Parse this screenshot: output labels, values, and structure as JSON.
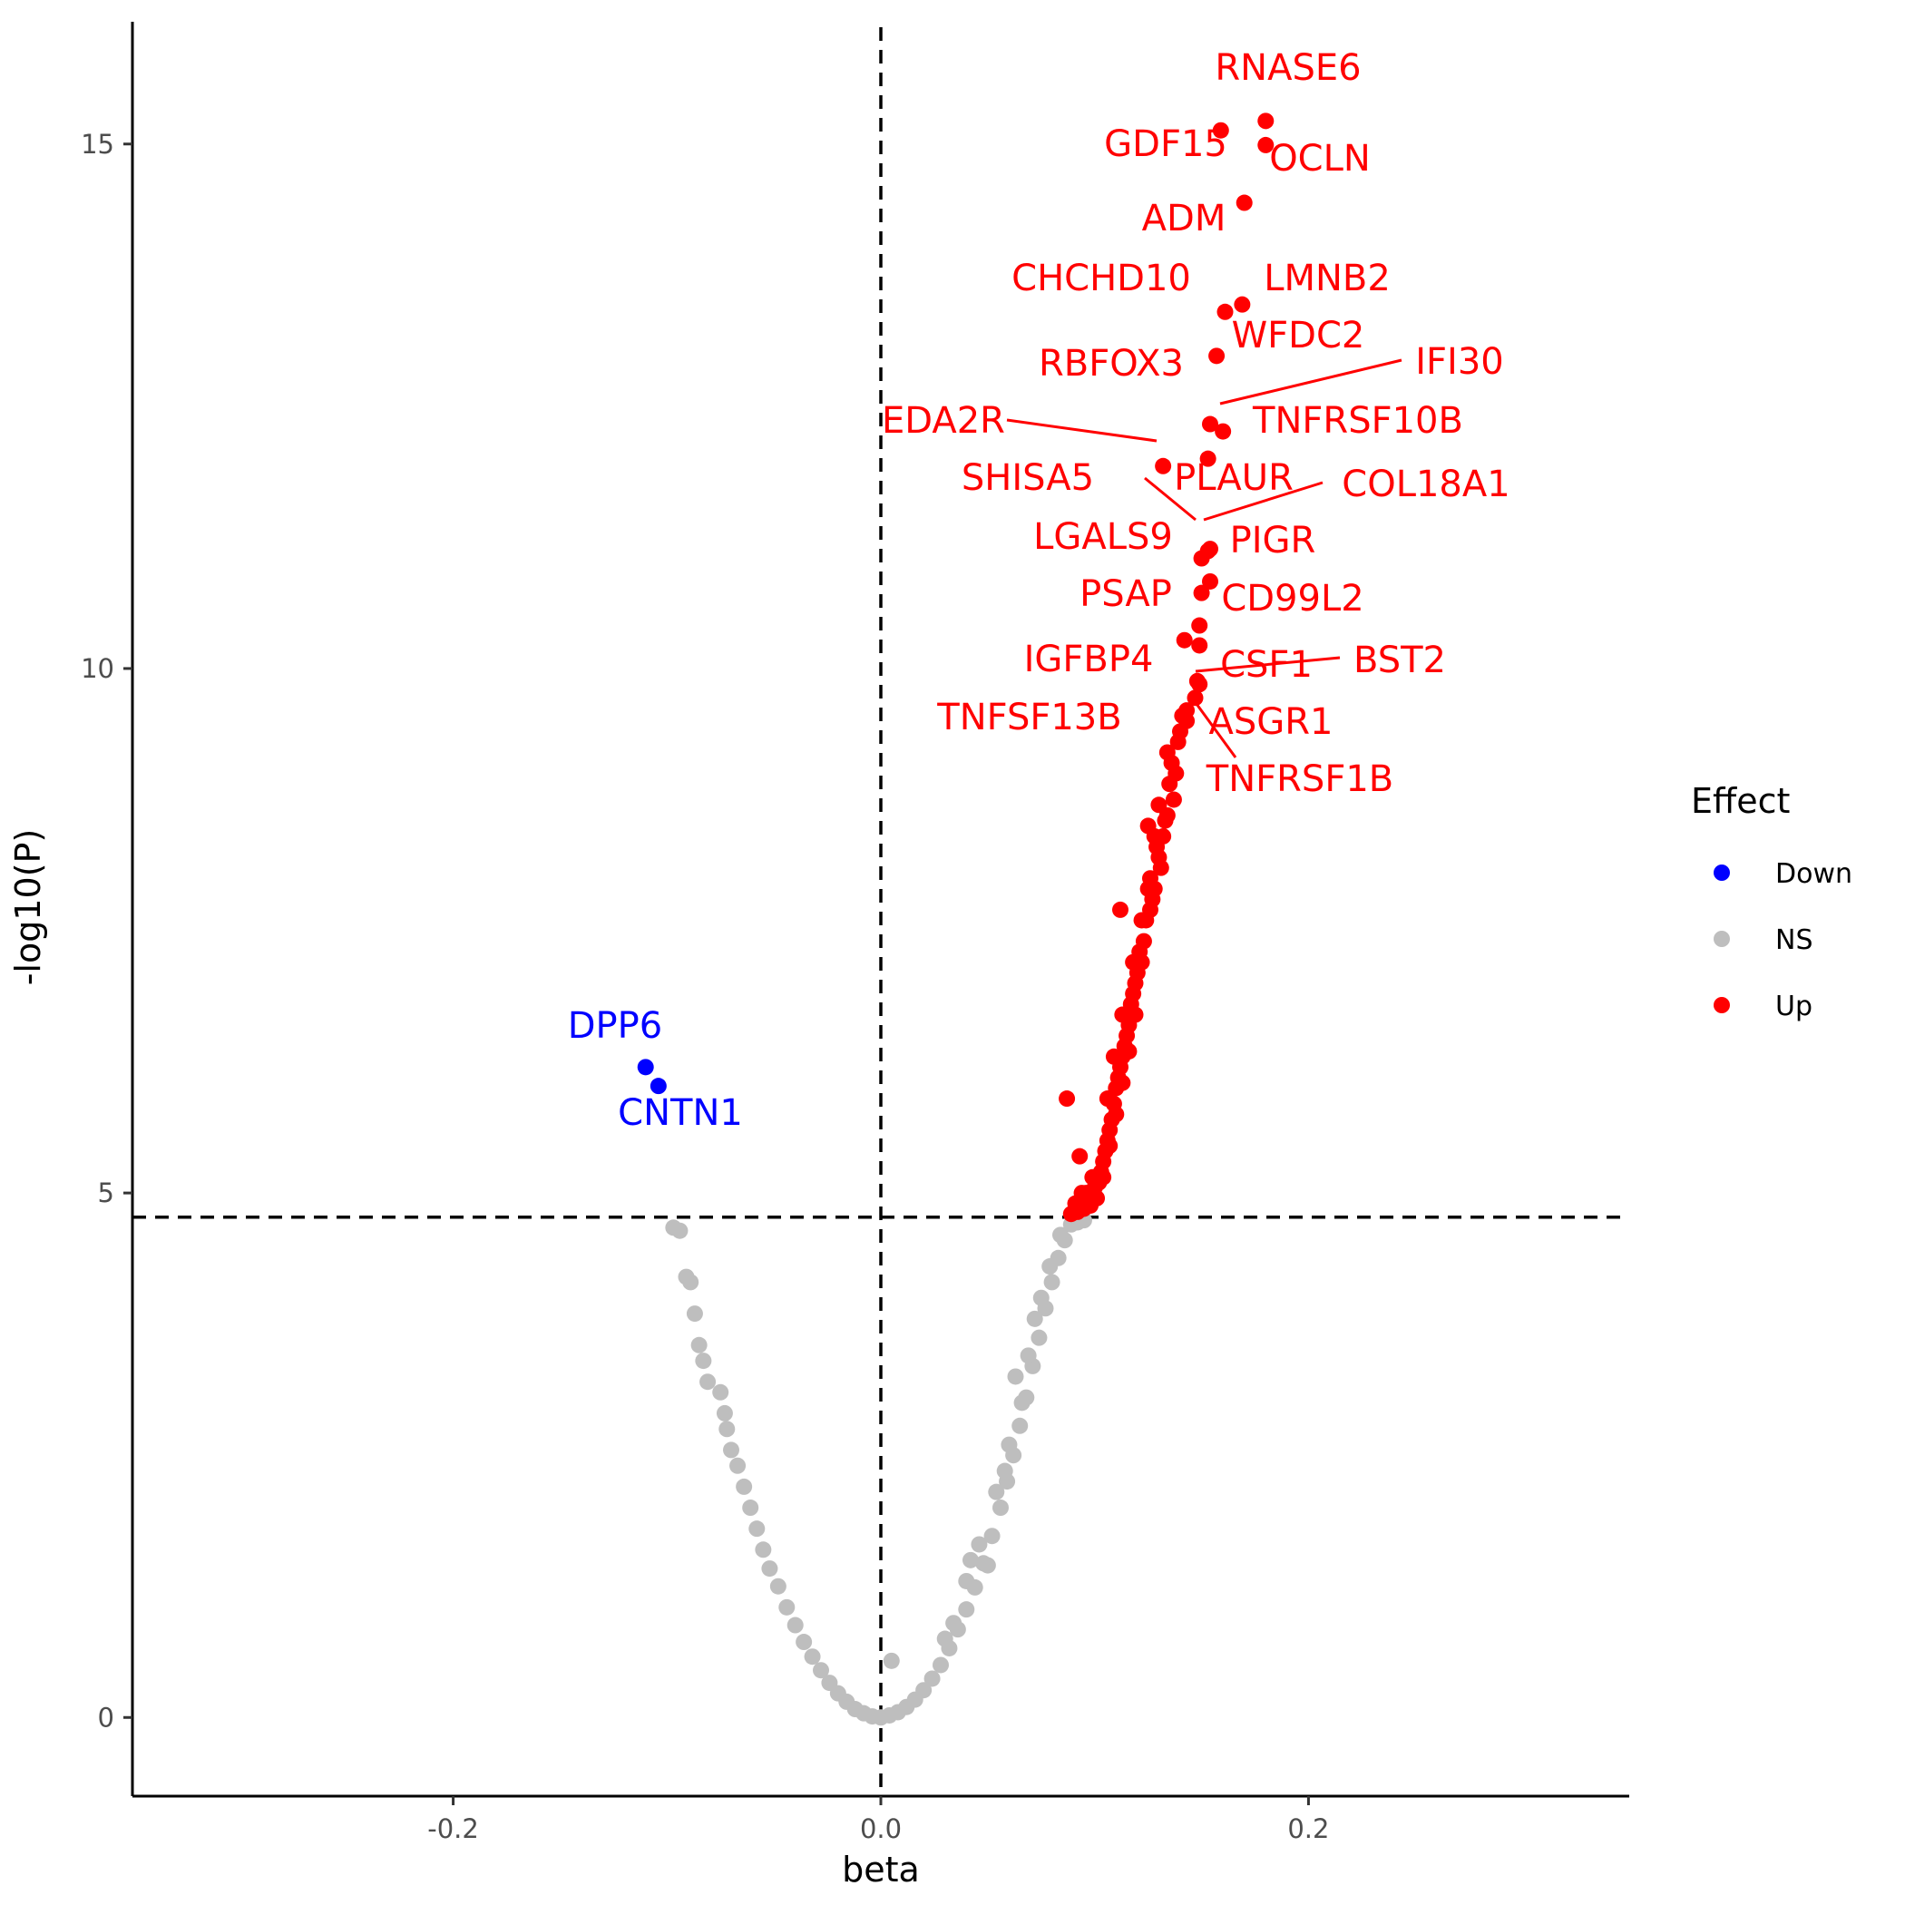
{
  "chart_data": {
    "type": "scatter",
    "title": "",
    "xlabel": "beta",
    "ylabel": "-log10(P)",
    "xlim": [
      -0.35,
      0.35
    ],
    "ylim": [
      -0.75,
      16.2
    ],
    "x_ticks": [
      {
        "value": -0.2,
        "label": "-0.2"
      },
      {
        "value": 0.0,
        "label": "0.0"
      },
      {
        "value": 0.2,
        "label": "0.2"
      }
    ],
    "y_ticks": [
      {
        "value": 0,
        "label": "0"
      },
      {
        "value": 5,
        "label": "5"
      },
      {
        "value": 10,
        "label": "10"
      },
      {
        "value": 15,
        "label": "15"
      }
    ],
    "reference_lines": {
      "vertical_x": 0.0,
      "horizontal_y": 4.77
    },
    "grid": false,
    "legend": {
      "title": "Effect",
      "position": "right",
      "entries": [
        {
          "label": "Down",
          "color": "#0000ff"
        },
        {
          "label": "NS",
          "color": "#bebebe"
        },
        {
          "label": "Up",
          "color": "#ff0000"
        }
      ]
    },
    "colors": {
      "Down": "#0000ff",
      "NS": "#bebebe",
      "Up": "#ff0000"
    },
    "labeled_points": [
      {
        "label": "RNASE6",
        "group": "Up",
        "x": 0.18,
        "y": 15.22
      },
      {
        "label": "GDF15",
        "group": "Up",
        "x": 0.159,
        "y": 15.13
      },
      {
        "label": "OCLN",
        "group": "Up",
        "x": 0.18,
        "y": 14.99
      },
      {
        "label": "ADM",
        "group": "Up",
        "x": 0.17,
        "y": 14.44
      },
      {
        "label": "LMNB2",
        "group": "Up",
        "x": 0.169,
        "y": 13.47
      },
      {
        "label": "CHCHD10",
        "group": "Up",
        "x": 0.161,
        "y": 13.4
      },
      {
        "label": "WFDC2",
        "group": "Up",
        "x": 0.157,
        "y": 12.98
      },
      {
        "label": "RBFOX3",
        "group": "Up",
        "x": 0.154,
        "y": 12.33
      },
      {
        "label": "IFI30",
        "group": "Up",
        "x": 0.16,
        "y": 12.26
      },
      {
        "label": "TNFRSF10B",
        "group": "Up",
        "x": 0.153,
        "y": 12.0
      },
      {
        "label": "EDA2R",
        "group": "Up",
        "x": 0.132,
        "y": 11.93
      },
      {
        "label": "PLAUR",
        "group": "Up",
        "x": 0.154,
        "y": 11.14
      },
      {
        "label": "SHISA5",
        "group": "Up",
        "x": 0.15,
        "y": 11.05
      },
      {
        "label": "COL18A1",
        "group": "Up",
        "x": 0.153,
        "y": 11.12
      },
      {
        "label": "PIGR",
        "group": "Up",
        "x": 0.154,
        "y": 10.83
      },
      {
        "label": "LGALS9",
        "group": "Up",
        "x": 0.15,
        "y": 10.72
      },
      {
        "label": "CD99L2",
        "group": "Up",
        "x": 0.149,
        "y": 10.41
      },
      {
        "label": "PSAP",
        "group": "Up",
        "x": 0.142,
        "y": 10.27
      },
      {
        "label": "IGFBP4",
        "group": "Up",
        "x": 0.149,
        "y": 10.22
      },
      {
        "label": "CSF1",
        "group": "Up",
        "x": 0.148,
        "y": 9.88
      },
      {
        "label": "BST2",
        "group": "Up",
        "x": 0.149,
        "y": 9.85
      },
      {
        "label": "TNFSF13B",
        "group": "Up",
        "x": 0.143,
        "y": 9.6
      },
      {
        "label": "ASGR1",
        "group": "Up",
        "x": 0.147,
        "y": 9.72
      },
      {
        "label": "TNFRSF1B",
        "group": "Up",
        "x": 0.143,
        "y": 9.5
      },
      {
        "label": "DPP6",
        "group": "Down",
        "x": -0.11,
        "y": 6.2
      },
      {
        "label": "CNTN1",
        "group": "Down",
        "x": -0.104,
        "y": 6.02
      }
    ],
    "other_points": {
      "Up": [
        [
          0.087,
          5.9
        ],
        [
          0.112,
          7.7
        ],
        [
          0.093,
          5.35
        ],
        [
          0.137,
          8.75
        ],
        [
          0.125,
          8.5
        ],
        [
          0.134,
          8.6
        ],
        [
          0.13,
          8.2
        ],
        [
          0.126,
          8.0
        ],
        [
          0.128,
          7.9
        ],
        [
          0.124,
          7.6
        ],
        [
          0.121,
          7.3
        ],
        [
          0.119,
          7.0
        ],
        [
          0.117,
          6.8
        ],
        [
          0.116,
          6.6
        ],
        [
          0.114,
          6.4
        ],
        [
          0.112,
          6.2
        ],
        [
          0.11,
          6.0
        ],
        [
          0.108,
          5.7
        ],
        [
          0.106,
          5.5
        ],
        [
          0.104,
          5.3
        ],
        [
          0.102,
          5.1
        ],
        [
          0.101,
          4.95
        ],
        [
          0.098,
          4.88
        ],
        [
          0.095,
          4.85
        ],
        [
          0.092,
          4.82
        ],
        [
          0.089,
          4.8
        ],
        [
          0.136,
          9.1
        ],
        [
          0.139,
          9.3
        ],
        [
          0.141,
          9.55
        ],
        [
          0.138,
          9.0
        ],
        [
          0.135,
          8.9
        ],
        [
          0.132,
          8.4
        ],
        [
          0.129,
          8.3
        ],
        [
          0.127,
          7.8
        ],
        [
          0.123,
          7.4
        ],
        [
          0.12,
          7.1
        ],
        [
          0.118,
          6.9
        ],
        [
          0.115,
          6.5
        ],
        [
          0.113,
          6.3
        ],
        [
          0.111,
          6.1
        ],
        [
          0.109,
          5.85
        ],
        [
          0.107,
          5.6
        ],
        [
          0.105,
          5.4
        ],
        [
          0.103,
          5.2
        ],
        [
          0.1,
          5.05
        ],
        [
          0.097,
          4.95
        ],
        [
          0.094,
          5.0
        ],
        [
          0.131,
          8.1
        ],
        [
          0.133,
          8.55
        ],
        [
          0.122,
          7.2
        ],
        [
          0.126,
          7.7
        ],
        [
          0.128,
          8.4
        ],
        [
          0.134,
          9.2
        ],
        [
          0.14,
          9.4
        ],
        [
          0.119,
          6.7
        ],
        [
          0.116,
          6.35
        ],
        [
          0.113,
          6.05
        ],
        [
          0.11,
          5.75
        ],
        [
          0.107,
          5.45
        ],
        [
          0.104,
          5.15
        ],
        [
          0.099,
          5.15
        ],
        [
          0.096,
          5.0
        ],
        [
          0.091,
          4.9
        ],
        [
          0.106,
          5.9
        ],
        [
          0.109,
          6.3
        ],
        [
          0.113,
          6.7
        ],
        [
          0.118,
          7.2
        ],
        [
          0.122,
          7.6
        ],
        [
          0.125,
          7.9
        ],
        [
          0.13,
          8.7
        ]
      ],
      "NS_left": [
        [
          -0.097,
          4.67
        ],
        [
          -0.094,
          4.64
        ],
        [
          -0.091,
          4.2
        ],
        [
          -0.089,
          4.15
        ],
        [
          -0.087,
          3.85
        ],
        [
          -0.085,
          3.55
        ],
        [
          -0.083,
          3.4
        ],
        [
          -0.081,
          3.2
        ],
        [
          -0.075,
          3.1
        ],
        [
          -0.073,
          2.9
        ],
        [
          -0.072,
          2.75
        ],
        [
          -0.07,
          2.55
        ],
        [
          -0.067,
          2.4
        ],
        [
          -0.064,
          2.2
        ],
        [
          -0.061,
          2.0
        ],
        [
          -0.058,
          1.8
        ],
        [
          -0.055,
          1.6
        ],
        [
          -0.052,
          1.42
        ],
        [
          -0.048,
          1.25
        ],
        [
          -0.044,
          1.05
        ],
        [
          -0.04,
          0.88
        ],
        [
          -0.036,
          0.72
        ],
        [
          -0.032,
          0.58
        ],
        [
          -0.028,
          0.45
        ],
        [
          -0.024,
          0.33
        ],
        [
          -0.02,
          0.23
        ],
        [
          -0.016,
          0.15
        ],
        [
          -0.012,
          0.08
        ],
        [
          -0.008,
          0.04
        ],
        [
          -0.004,
          0.01
        ]
      ],
      "NS_right": [
        [
          0.0,
          0.0
        ],
        [
          0.005,
          0.54
        ],
        [
          0.004,
          0.02
        ],
        [
          0.008,
          0.05
        ],
        [
          0.012,
          0.1
        ],
        [
          0.016,
          0.17
        ],
        [
          0.02,
          0.26
        ],
        [
          0.024,
          0.37
        ],
        [
          0.028,
          0.5
        ],
        [
          0.032,
          0.66
        ],
        [
          0.034,
          0.9
        ],
        [
          0.036,
          0.84
        ],
        [
          0.04,
          1.03
        ],
        [
          0.044,
          1.24
        ],
        [
          0.048,
          1.47
        ],
        [
          0.05,
          1.45
        ],
        [
          0.052,
          1.73
        ],
        [
          0.056,
          2.0
        ],
        [
          0.059,
          2.25
        ],
        [
          0.062,
          2.5
        ],
        [
          0.065,
          2.78
        ],
        [
          0.063,
          3.25
        ],
        [
          0.068,
          3.05
        ],
        [
          0.071,
          3.35
        ],
        [
          0.074,
          3.62
        ],
        [
          0.077,
          3.9
        ],
        [
          0.08,
          4.15
        ],
        [
          0.083,
          4.38
        ],
        [
          0.086,
          4.55
        ],
        [
          0.089,
          4.7
        ],
        [
          0.092,
          4.72
        ],
        [
          0.095,
          4.74
        ],
        [
          0.072,
          3.8
        ],
        [
          0.066,
          3.0
        ],
        [
          0.06,
          2.6
        ],
        [
          0.054,
          2.15
        ],
        [
          0.046,
          1.65
        ],
        [
          0.04,
          1.3
        ],
        [
          0.03,
          0.75
        ],
        [
          0.075,
          4.0
        ],
        [
          0.079,
          4.3
        ],
        [
          0.084,
          4.6
        ],
        [
          0.069,
          3.45
        ],
        [
          0.058,
          2.35
        ],
        [
          0.042,
          1.5
        ]
      ]
    }
  }
}
